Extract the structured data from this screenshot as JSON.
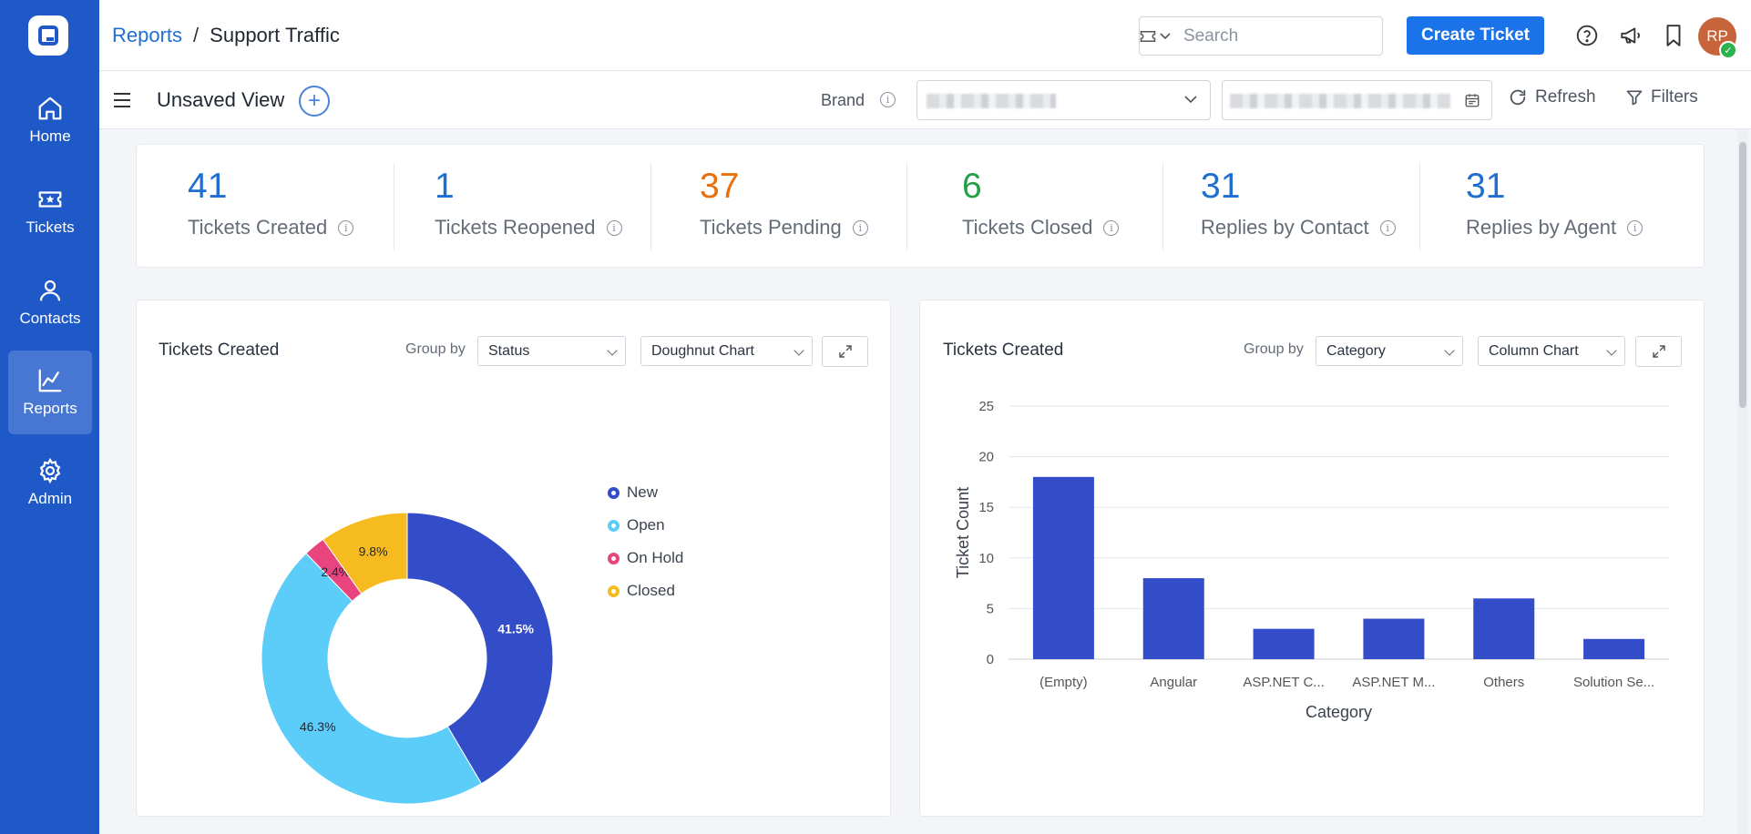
{
  "sidebar": {
    "items": [
      {
        "label": "Home",
        "icon": "home-icon"
      },
      {
        "label": "Tickets",
        "icon": "ticket-icon"
      },
      {
        "label": "Contacts",
        "icon": "person-icon"
      },
      {
        "label": "Reports",
        "icon": "chart-line-icon"
      },
      {
        "label": "Admin",
        "icon": "gear-icon"
      }
    ],
    "active": "Reports",
    "color": "#1f59c8"
  },
  "header": {
    "breadcrumb_root": "Reports",
    "breadcrumb_sep": "/",
    "breadcrumb_current": "Support Traffic",
    "search_placeholder": "Search",
    "create_label": "Create Ticket",
    "avatar_initials": "RP",
    "accent": "#1a73e8"
  },
  "toolbar": {
    "view_name": "Unsaved View",
    "brand_label": "Brand",
    "refresh_label": "Refresh",
    "filters_label": "Filters"
  },
  "stats": [
    {
      "value": "41",
      "label": "Tickets Created",
      "color": "#1f6fd1"
    },
    {
      "value": "1",
      "label": "Tickets Reopened",
      "color": "#1f6fd1"
    },
    {
      "value": "37",
      "label": "Tickets Pending",
      "color": "#e8700a"
    },
    {
      "value": "6",
      "label": "Tickets Closed",
      "color": "#26a048"
    },
    {
      "value": "31",
      "label": "Replies by Contact",
      "color": "#1f6fd1"
    },
    {
      "value": "31",
      "label": "Replies by Agent",
      "color": "#1f6fd1"
    }
  ],
  "left_card": {
    "title": "Tickets Created",
    "group_by_label": "Group by",
    "group_by_value": "Status",
    "chart_type_value": "Doughnut Chart"
  },
  "right_card": {
    "title": "Tickets Created",
    "group_by_label": "Group by",
    "group_by_value": "Category",
    "chart_type_value": "Column Chart"
  },
  "chart_data": [
    {
      "type": "pie",
      "variant": "doughnut",
      "slices": [
        {
          "name": "New",
          "value": 41.5,
          "label": "41.5%",
          "color": "#334dc9"
        },
        {
          "name": "Open",
          "value": 46.3,
          "label": "46.3%",
          "color": "#5ccdf8"
        },
        {
          "name": "On Hold",
          "value": 2.4,
          "label": "2.4%",
          "color": "#e8457f"
        },
        {
          "name": "Closed",
          "value": 9.8,
          "label": "9.8%",
          "color": "#f5bb1f"
        }
      ],
      "legend_position": "right"
    },
    {
      "type": "bar",
      "categories": [
        "(Empty)",
        "Angular",
        "ASP.NET C...",
        "ASP.NET M...",
        "Others",
        "Solution Se..."
      ],
      "values": [
        18,
        8,
        3,
        4,
        6,
        2
      ],
      "xlabel": "Category",
      "ylabel": "Ticket Count",
      "ylim": [
        0,
        25
      ],
      "yticks": [
        0,
        5,
        10,
        15,
        20,
        25
      ],
      "grid": true,
      "color": "#334dc9"
    }
  ]
}
